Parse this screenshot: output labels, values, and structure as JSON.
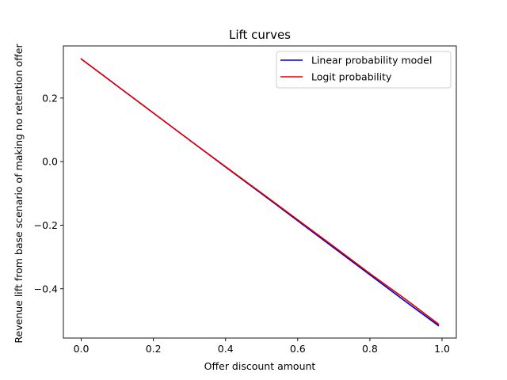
{
  "chart_data": {
    "type": "line",
    "title": "Lift curves",
    "xlabel": "Offer discount amount",
    "ylabel": "Revenue lift from base scenario of making no retention offer",
    "xlim": [
      -0.0495,
      1.0395
    ],
    "ylim": [
      -0.555,
      0.364
    ],
    "xticks": [
      0.0,
      0.2,
      0.4,
      0.6,
      0.8,
      1.0
    ],
    "xtick_labels": [
      "0.0",
      "0.2",
      "0.4",
      "0.6",
      "0.8",
      "1.0"
    ],
    "yticks": [
      -0.4,
      -0.2,
      0.0,
      0.2
    ],
    "ytick_labels": [
      "−0.4",
      "−0.2",
      "0.0",
      "0.2"
    ],
    "grid": false,
    "legend_position": "upper-right",
    "series": [
      {
        "name": "Linear probability model",
        "color": "#0000cc",
        "x": [
          0.0,
          0.1,
          0.2,
          0.3,
          0.4,
          0.5,
          0.6,
          0.7,
          0.8,
          0.9,
          0.99
        ],
        "y": [
          0.323,
          0.238,
          0.153,
          0.068,
          -0.017,
          -0.101,
          -0.186,
          -0.271,
          -0.356,
          -0.441,
          -0.516
        ]
      },
      {
        "name": "Logit probability",
        "color": "#dd0000",
        "x": [
          0.0,
          0.1,
          0.2,
          0.3,
          0.4,
          0.5,
          0.6,
          0.7,
          0.8,
          0.9,
          0.99
        ],
        "y": [
          0.323,
          0.238,
          0.153,
          0.068,
          -0.016,
          -0.099,
          -0.183,
          -0.267,
          -0.352,
          -0.434,
          -0.511
        ]
      }
    ]
  }
}
